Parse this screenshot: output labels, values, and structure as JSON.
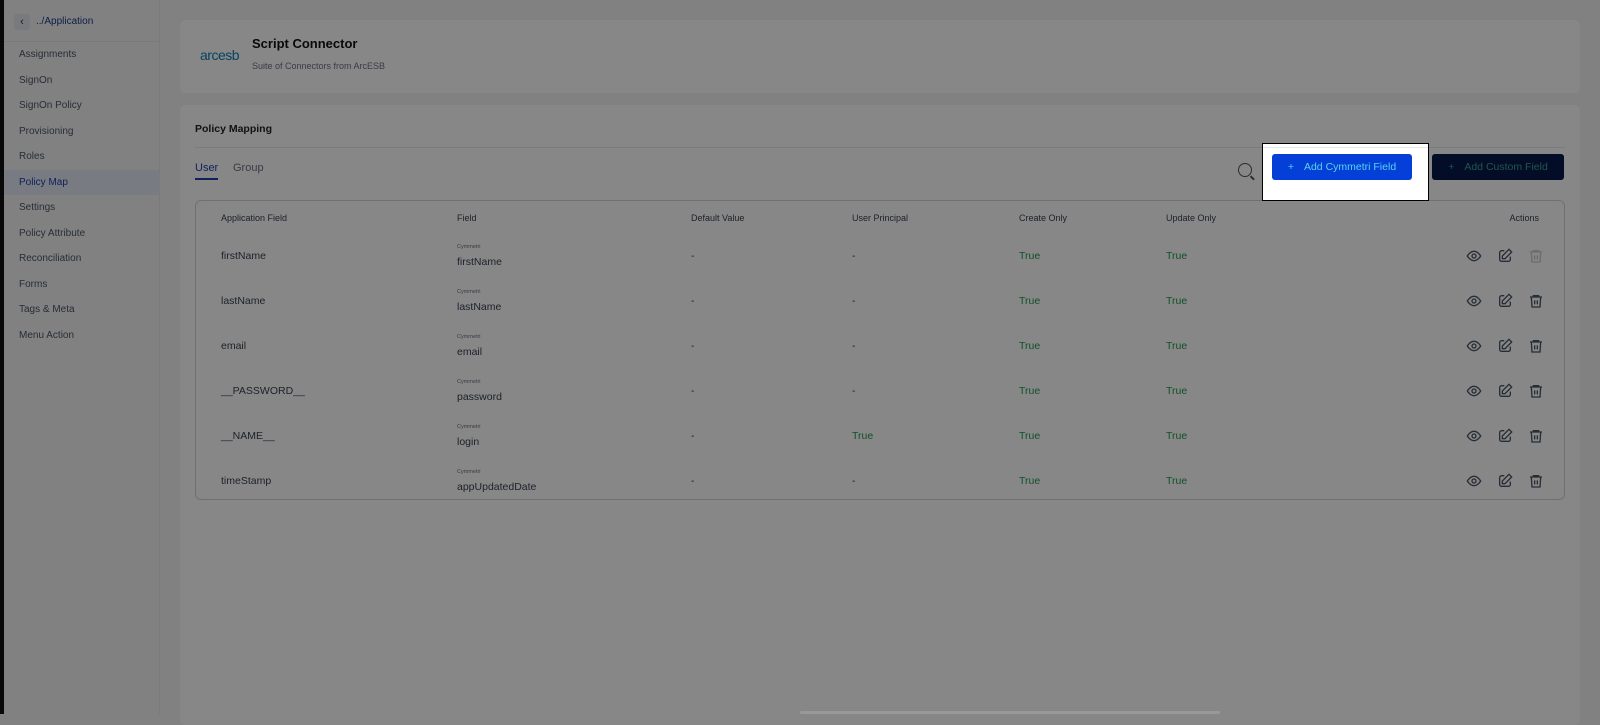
{
  "sidebar": {
    "back_label": "../Application",
    "items": [
      {
        "label": "Assignments"
      },
      {
        "label": "SignOn"
      },
      {
        "label": "SignOn Policy"
      },
      {
        "label": "Provisioning"
      },
      {
        "label": "Roles"
      },
      {
        "label": "Policy Map",
        "active": true
      },
      {
        "label": "Settings"
      },
      {
        "label": "Policy Attribute"
      },
      {
        "label": "Reconciliation"
      },
      {
        "label": "Forms"
      },
      {
        "label": "Tags & Meta"
      },
      {
        "label": "Menu Action"
      }
    ]
  },
  "header": {
    "logo": "arcesb",
    "title": "Script Connector",
    "subtitle": "Suite of Connectors from ArcESB"
  },
  "policy": {
    "title": "Policy Mapping",
    "tabs": [
      "User",
      "Group"
    ],
    "active_tab": "User",
    "add_cymmetri_label": "Add Cymmetri Field",
    "add_custom_label": "Add Custom Field",
    "plus": "+",
    "columns": [
      "Application Field",
      "Field",
      "Default Value",
      "User Principal",
      "Create Only",
      "Update Only",
      "Actions"
    ],
    "rows": [
      {
        "app": "firstName",
        "src": "Cymmetri",
        "field": "firstName",
        "default": "-",
        "principal": "-",
        "create": "True",
        "update": "True",
        "delete_disabled": true
      },
      {
        "app": "lastName",
        "src": "Cymmetri",
        "field": "lastName",
        "default": "-",
        "principal": "-",
        "create": "True",
        "update": "True"
      },
      {
        "app": "email",
        "src": "Cymmetri",
        "field": "email",
        "default": "-",
        "principal": "-",
        "create": "True",
        "update": "True"
      },
      {
        "app": "__PASSWORD__",
        "src": "Cymmetri",
        "field": "password",
        "default": "-",
        "principal": "-",
        "create": "True",
        "update": "True"
      },
      {
        "app": "__NAME__",
        "src": "Cymmetri",
        "field": "login",
        "default": "-",
        "principal": "True",
        "create": "True",
        "update": "True"
      },
      {
        "app": "timeStamp",
        "src": "Cymmetri",
        "field": "appUpdatedDate",
        "default": "-",
        "principal": "-",
        "create": "True",
        "update": "True"
      }
    ]
  },
  "colors": {
    "primary": "#0440d8",
    "dark_button": "#061a4d",
    "true_text": "#1f9a4f",
    "active_nav": "#1d3fae"
  }
}
